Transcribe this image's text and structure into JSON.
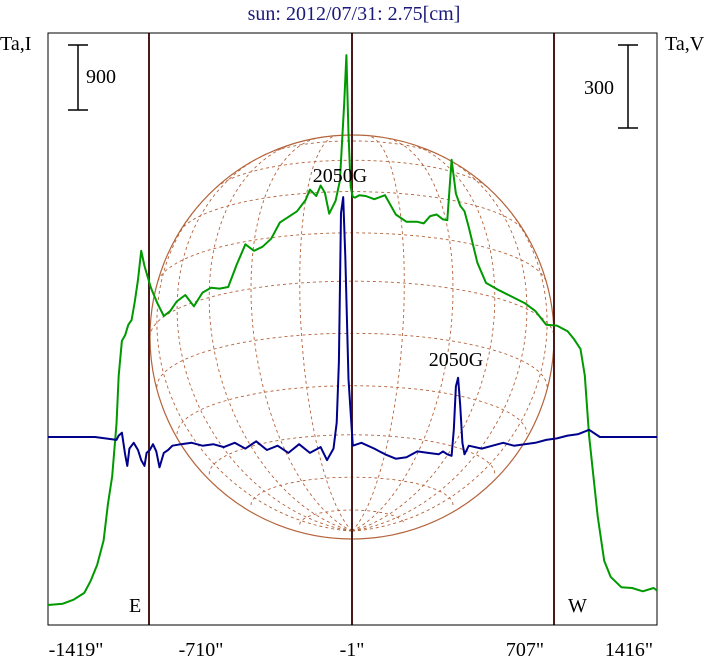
{
  "chart_data": {
    "type": "line",
    "title": "sun: 2012/07/31: 2.75[cm]",
    "ylabel_left": "Ta,I",
    "ylabel_right": "Ta,V",
    "xlim": [
      -1419,
      1416
    ],
    "x_ticks": [
      "-1419\"",
      "-710\"",
      "-1\"",
      "707\"",
      "1416\""
    ],
    "scale_bar_left": "900",
    "scale_bar_right": "300",
    "limb_labels": {
      "east": "E",
      "west": "W"
    },
    "annotations": [
      {
        "text": "2050G",
        "x": -60
      },
      {
        "text": "2050G",
        "x": 480
      }
    ],
    "series": [
      {
        "color": "#009900",
        "x": [
          -1419,
          -1350,
          -1300,
          -1250,
          -1220,
          -1190,
          -1160,
          -1140,
          -1120,
          -1100,
          -1090,
          -1075,
          -1060,
          -1045,
          -1030,
          -1015,
          -1000,
          -985,
          -970,
          -940,
          -910,
          -880,
          -850,
          -820,
          -780,
          -740,
          -700,
          -660,
          -620,
          -580,
          -540,
          -500,
          -460,
          -420,
          -380,
          -340,
          -300,
          -260,
          -220,
          -200,
          -170,
          -150,
          -130,
          -110,
          -80,
          -60,
          -40,
          -30,
          -20,
          -10,
          0,
          10,
          30,
          60,
          100,
          150,
          200,
          250,
          300,
          330,
          360,
          390,
          420,
          440,
          460,
          480,
          500,
          520,
          540,
          580,
          620,
          680,
          740,
          800,
          850,
          900,
          950,
          1000,
          1030,
          1060,
          1080,
          1100,
          1120,
          1140,
          1170,
          1200,
          1250,
          1300,
          1350,
          1400,
          1416
        ],
        "values": [
          100,
          115,
          165,
          250,
          400,
          600,
          900,
          1350,
          1700,
          2350,
          2950,
          3380,
          3450,
          3580,
          3640,
          3870,
          4140,
          4500,
          4310,
          4040,
          3850,
          3690,
          3750,
          3870,
          3950,
          3810,
          3980,
          4040,
          4030,
          4050,
          4330,
          4580,
          4500,
          4550,
          4650,
          4850,
          4920,
          4990,
          5130,
          5260,
          5180,
          5310,
          5220,
          4960,
          5120,
          5370,
          6330,
          6930,
          5950,
          5290,
          5170,
          5160,
          5190,
          5180,
          5140,
          5190,
          4950,
          4860,
          4860,
          4840,
          4930,
          4950,
          4890,
          4880,
          5630,
          5210,
          5060,
          4990,
          4790,
          4350,
          4100,
          4010,
          3930,
          3850,
          3750,
          3580,
          3570,
          3500,
          3400,
          3280,
          2950,
          2200,
          1700,
          1200,
          650,
          450,
          320,
          310,
          270,
          310,
          280
        ]
      },
      {
        "color": "#00008b",
        "x": [
          -1419,
          -1300,
          -1200,
          -1100,
          -1090,
          -1075,
          -1060,
          -1050,
          -1040,
          -1020,
          -1000,
          -985,
          -970,
          -960,
          -945,
          -930,
          -915,
          -900,
          -880,
          -860,
          -840,
          -800,
          -750,
          -700,
          -650,
          -600,
          -550,
          -500,
          -450,
          -400,
          -350,
          -300,
          -250,
          -200,
          -150,
          -120,
          -90,
          -75,
          -65,
          -55,
          -45,
          -35,
          -20,
          0,
          40,
          100,
          150,
          200,
          250,
          300,
          350,
          400,
          420,
          440,
          460,
          470,
          480,
          490,
          500,
          510,
          520,
          540,
          600,
          650,
          700,
          750,
          800,
          850,
          900,
          950,
          1000,
          1050,
          1100,
          1150,
          1200,
          1300,
          1416
        ],
        "values": [
          0,
          0,
          0,
          -20,
          10,
          30,
          -120,
          -200,
          -80,
          -40,
          -90,
          -160,
          -200,
          -110,
          -90,
          -50,
          -100,
          -210,
          -110,
          -90,
          -60,
          -50,
          -40,
          -60,
          -50,
          -70,
          -40,
          -80,
          -30,
          -90,
          -60,
          -110,
          -50,
          -110,
          -70,
          -160,
          -80,
          100,
          520,
          1550,
          1660,
          1250,
          400,
          -60,
          -40,
          -80,
          -120,
          -150,
          -140,
          -100,
          -110,
          -120,
          -100,
          -120,
          -130,
          50,
          350,
          410,
          220,
          -40,
          -120,
          -60,
          -80,
          -60,
          -40,
          -60,
          -50,
          -40,
          -20,
          -10,
          10,
          20,
          50,
          0,
          0,
          0,
          0
        ]
      }
    ]
  }
}
